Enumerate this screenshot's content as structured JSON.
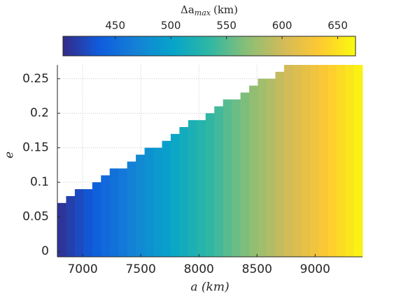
{
  "chart_data": {
    "type": "heatmap",
    "x_label": "a (km)",
    "y_label": "e",
    "colorbar_title": {
      "base": "Δa",
      "sub": "max",
      "unit": "(km)"
    },
    "a": [
      6820,
      6895,
      6970,
      7045,
      7120,
      7195,
      7270,
      7345,
      7420,
      7495,
      7570,
      7645,
      7720,
      7795,
      7870,
      7945,
      8020,
      8095,
      8170,
      8245,
      8320,
      8395,
      8470,
      8545,
      8620,
      8695,
      8770,
      8845,
      8920,
      8995,
      9070,
      9145,
      9220,
      9295,
      9370
    ],
    "e_max": [
      0.07,
      0.08,
      0.09,
      0.09,
      0.1,
      0.11,
      0.12,
      0.12,
      0.13,
      0.14,
      0.15,
      0.15,
      0.16,
      0.17,
      0.18,
      0.19,
      0.19,
      0.2,
      0.21,
      0.22,
      0.22,
      0.23,
      0.24,
      0.25,
      0.25,
      0.26,
      0.27,
      0.27,
      0.27,
      0.27,
      0.27,
      0.27,
      0.27,
      0.27,
      0.27
    ],
    "values": [
      410,
      417,
      425,
      432,
      439,
      447,
      454,
      461,
      469,
      476,
      484,
      491,
      498,
      506,
      513,
      520,
      528,
      535,
      542,
      550,
      557,
      564,
      572,
      579,
      586,
      594,
      601,
      608,
      616,
      623,
      630,
      638,
      645,
      652,
      660
    ],
    "cell_width": 75,
    "xlim": [
      6782.5,
      9407.5
    ],
    "xticks": [
      7000,
      7500,
      8000,
      8500,
      9000
    ],
    "ylim": [
      -0.008,
      0.27
    ],
    "yticks": [
      0,
      0.05,
      0.1,
      0.15,
      0.2,
      0.25
    ],
    "clim": [
      403,
      666
    ],
    "cticks": [
      450,
      500,
      550,
      600,
      650
    ],
    "colormap": [
      "#352a87",
      "#0f5cdd",
      "#1481d6",
      "#06a4ca",
      "#2eb7a4",
      "#87bf77",
      "#d1bb59",
      "#fec832",
      "#f9fb0e"
    ],
    "grid": true
  }
}
